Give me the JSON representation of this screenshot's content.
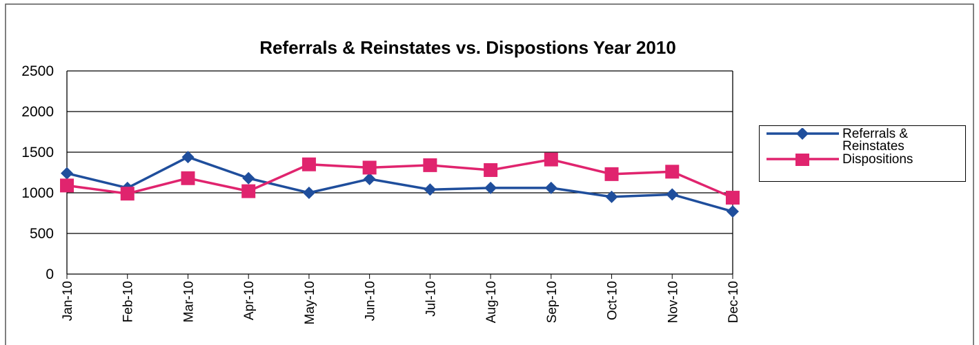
{
  "chart_data": {
    "type": "line",
    "title": "Referrals & Reinstates vs. Dispostions Year 2010",
    "categories": [
      "Jan-10",
      "Feb-10",
      "Mar-10",
      "Apr-10",
      "May-10",
      "Jun-10",
      "Jul-10",
      "Aug-10",
      "Sep-10",
      "Oct-10",
      "Nov-10",
      "Dec-10"
    ],
    "series": [
      {
        "name": "Referrals & Reinstates",
        "color": "#1f4e9c",
        "marker": "diamond",
        "values": [
          1240,
          1060,
          1440,
          1180,
          1000,
          1170,
          1040,
          1060,
          1060,
          950,
          980,
          770
        ]
      },
      {
        "name": "Dispositions",
        "color": "#e0246e",
        "marker": "square",
        "values": [
          1090,
          990,
          1180,
          1020,
          1350,
          1310,
          1340,
          1280,
          1410,
          1230,
          1260,
          940
        ]
      }
    ],
    "ylim": [
      0,
      2500
    ],
    "yticks": [
      0,
      500,
      1000,
      1500,
      2000,
      2500
    ],
    "grid": true,
    "legend": "right"
  }
}
